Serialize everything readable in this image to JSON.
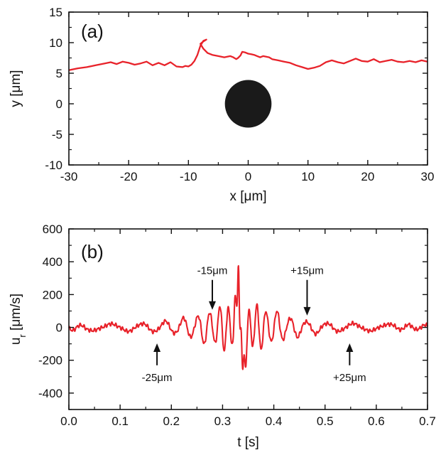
{
  "chart_data": [
    {
      "type": "line",
      "panel_label": "(a)",
      "xlabel": "x [μm]",
      "ylabel": "y [μm]",
      "xlim": [
        -30,
        30
      ],
      "ylim": [
        -10,
        15
      ],
      "xticks": [
        "-30",
        "-20",
        "-10",
        "0",
        "10",
        "20",
        "30"
      ],
      "yticks": [
        "-10",
        "-5",
        "0",
        "5",
        "10",
        "15"
      ],
      "line_color": "#e8222a",
      "particle_color": "#1a1a1a",
      "particle": {
        "cx": 0,
        "cy": 0,
        "r": 3.9
      },
      "series": [
        {
          "x": [
            -30,
            -28.5,
            -27,
            -25.5,
            -24,
            -23,
            -22,
            -21,
            -20,
            -19,
            -18,
            -17,
            -16,
            -15,
            -14,
            -13,
            -12,
            -11,
            -10.5,
            -10,
            -9.5,
            -9,
            -8.5,
            -8,
            -7.5,
            -7,
            -7.5,
            -8,
            -7.5,
            -6.8,
            -6,
            -5,
            -4,
            -3,
            -2.5,
            -2,
            -1.7,
            -1.3,
            -1,
            -0.5,
            0,
            0.5,
            1,
            1.5,
            2,
            2.5,
            3,
            3.5,
            4,
            5,
            6,
            7,
            8,
            9,
            10,
            11,
            12,
            13,
            14,
            15,
            16,
            17,
            18,
            19,
            20,
            21,
            22,
            23,
            24,
            25,
            26,
            27,
            28,
            29,
            30
          ],
          "y": [
            5.5,
            5.8,
            6.0,
            6.3,
            6.6,
            6.8,
            6.5,
            6.9,
            6.7,
            6.4,
            6.6,
            6.9,
            6.3,
            6.7,
            6.3,
            6.8,
            6.1,
            6.0,
            6.2,
            6.1,
            6.4,
            7.0,
            8.0,
            9.5,
            10.3,
            10.5,
            10.2,
            9.8,
            9.0,
            8.3,
            8.0,
            7.8,
            7.6,
            7.8,
            7.6,
            7.3,
            7.5,
            7.9,
            8.5,
            8.4,
            8.2,
            8.1,
            8.0,
            7.8,
            7.6,
            7.8,
            7.7,
            7.6,
            7.3,
            7.1,
            6.9,
            6.7,
            6.3,
            6.0,
            5.7,
            5.9,
            6.2,
            6.8,
            7.1,
            6.8,
            6.6,
            7.0,
            7.4,
            7.0,
            6.9,
            7.3,
            6.8,
            7.0,
            7.2,
            6.9,
            6.8,
            7.0,
            6.8,
            7.1,
            6.9
          ]
        }
      ]
    },
    {
      "type": "line",
      "panel_label": "(b)",
      "xlabel": "t [s]",
      "ylabel_main": "u",
      "ylabel_sub": "r",
      "ylabel_rest": " [μm/s]",
      "xlim": [
        0.0,
        0.7
      ],
      "ylim": [
        -500,
        600
      ],
      "xticks": [
        "0.0",
        "0.1",
        "0.2",
        "0.3",
        "0.4",
        "0.5",
        "0.6",
        "0.7"
      ],
      "yticks": [
        "-400",
        "-200",
        "0",
        "200",
        "400",
        "600"
      ],
      "line_color": "#e8222a",
      "annotations": [
        {
          "text": "-15μm",
          "x": 0.28,
          "y": 90,
          "dir": "down",
          "label_y": 350
        },
        {
          "text": "+15μm",
          "x": 0.465,
          "y": 55,
          "dir": "down",
          "label_y": 350
        },
        {
          "text": "-25μm",
          "x": 0.172,
          "y": -80,
          "dir": "up",
          "label_y": -300
        },
        {
          "text": "+25μm",
          "x": 0.548,
          "y": -80,
          "dir": "up",
          "label_y": -300
        }
      ]
    }
  ]
}
